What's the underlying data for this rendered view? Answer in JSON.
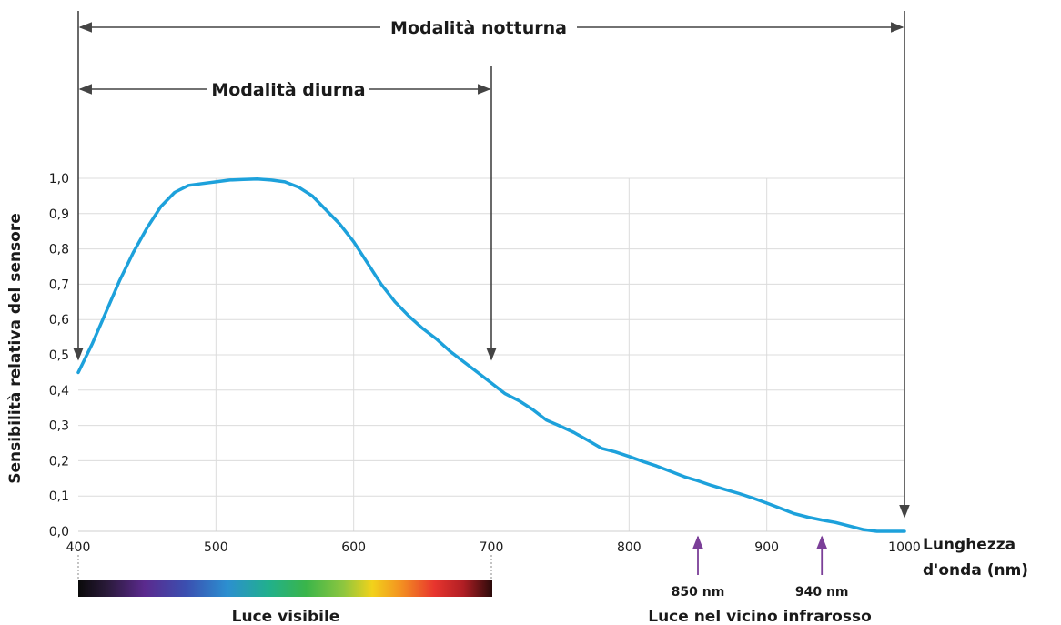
{
  "chart_data": {
    "type": "line",
    "xlabel": "Lunghezza d'onda (nm)",
    "xlabel_line1": "Lunghezza",
    "xlabel_line2": "d'onda (nm)",
    "ylabel": "Sensibilità relativa del sensore",
    "xlim": [
      400,
      1000
    ],
    "ylim": [
      0,
      1.0
    ],
    "grid": true,
    "x_ticks": [
      400,
      500,
      600,
      700,
      800,
      900,
      1000
    ],
    "y_ticks": [
      "0,0",
      "0,1",
      "0,2",
      "0,3",
      "0,4",
      "0,5",
      "0,6",
      "0,7",
      "0,8",
      "0,9",
      "1,0"
    ],
    "series": [
      {
        "color": "#1da1db",
        "x": [
          400,
          410,
          420,
          430,
          440,
          450,
          460,
          470,
          480,
          490,
          500,
          510,
          520,
          530,
          540,
          550,
          560,
          570,
          580,
          590,
          600,
          610,
          620,
          630,
          640,
          650,
          660,
          670,
          680,
          690,
          700,
          710,
          720,
          730,
          740,
          750,
          760,
          770,
          780,
          790,
          800,
          810,
          820,
          830,
          840,
          850,
          860,
          870,
          880,
          890,
          900,
          910,
          920,
          930,
          940,
          950,
          960,
          970,
          980,
          990,
          1000
        ],
        "y": [
          0.45,
          0.53,
          0.62,
          0.71,
          0.79,
          0.86,
          0.92,
          0.96,
          0.98,
          0.985,
          0.99,
          0.995,
          0.997,
          0.998,
          0.995,
          0.99,
          0.975,
          0.95,
          0.91,
          0.87,
          0.82,
          0.76,
          0.7,
          0.65,
          0.61,
          0.575,
          0.545,
          0.51,
          0.48,
          0.45,
          0.42,
          0.39,
          0.37,
          0.345,
          0.315,
          0.298,
          0.28,
          0.258,
          0.235,
          0.225,
          0.212,
          0.198,
          0.185,
          0.17,
          0.155,
          0.143,
          0.13,
          0.118,
          0.107,
          0.094,
          0.08,
          0.065,
          0.05,
          0.04,
          0.032,
          0.025,
          0.015,
          0.005,
          0.0,
          0.0,
          0.0
        ]
      }
    ],
    "annotations": {
      "night_mode": {
        "label": "Modalità notturna",
        "from": 400,
        "to": 1000
      },
      "day_mode": {
        "label": "Modalità diurna",
        "from": 400,
        "to": 700
      },
      "markers": [
        {
          "x": 850,
          "label": "850 nm",
          "color": "#7b3f98"
        },
        {
          "x": 940,
          "label": "940 nm",
          "color": "#7b3f98"
        }
      ],
      "visible_label": "Luce visibile",
      "nir_label": "Luce nel vicino infrarosso"
    }
  }
}
